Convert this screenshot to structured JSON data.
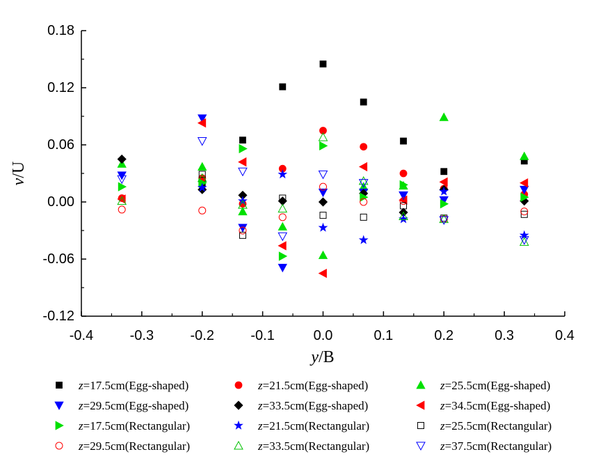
{
  "chart_data": {
    "type": "scatter",
    "xlabel": {
      "italic": "y",
      "rest": "/B"
    },
    "ylabel": {
      "italic": "v",
      "rest": "/U"
    },
    "xlim": [
      -0.4,
      0.4
    ],
    "ylim": [
      -0.12,
      0.18
    ],
    "xticks": [
      "-0.4",
      "-0.3",
      "-0.2",
      "-0.1",
      "0.0",
      "0.1",
      "0.2",
      "0.3",
      "0.4"
    ],
    "yticks": [
      "-0.12",
      "-0.06",
      "0.00",
      "0.06",
      "0.12",
      "0.18"
    ],
    "grid": false,
    "legend_placement": "bottom",
    "x": [
      -0.333,
      -0.2,
      -0.133,
      -0.067,
      0.0,
      0.067,
      0.133,
      0.2,
      0.333
    ],
    "series": [
      {
        "name": "z=17.5cm(Egg-shaped)",
        "marker": "square",
        "filled": true,
        "color": "#000000",
        "values": [
          null,
          0.02,
          0.065,
          0.121,
          0.145,
          0.105,
          0.064,
          0.032,
          0.043
        ]
      },
      {
        "name": "z=21.5cm(Egg-shaped)",
        "marker": "circle",
        "filled": true,
        "color": "#ff0000",
        "values": [
          0.004,
          0.025,
          -0.002,
          0.035,
          0.075,
          0.058,
          0.03,
          0.014,
          0.008
        ]
      },
      {
        "name": "z=25.5cm(Egg-shaped)",
        "marker": "triangle-up",
        "filled": true,
        "color": "#00e000",
        "values": [
          0.04,
          0.037,
          -0.01,
          -0.026,
          -0.056,
          0.016,
          0.017,
          0.089,
          0.048
        ]
      },
      {
        "name": "z=29.5cm(Egg-shaped)",
        "marker": "triangle-down",
        "filled": true,
        "color": "#0000ff",
        "values": [
          0.028,
          0.088,
          -0.027,
          -0.069,
          0.01,
          0.01,
          0.007,
          0.002,
          0.013
        ]
      },
      {
        "name": "z=33.5cm(Egg-shaped)",
        "marker": "diamond",
        "filled": true,
        "color": "#000000",
        "values": [
          0.045,
          0.013,
          0.007,
          0.001,
          0.0,
          0.009,
          -0.011,
          0.013,
          0.001
        ]
      },
      {
        "name": "z=34.5cm(Egg-shaped)",
        "marker": "triangle-left",
        "filled": true,
        "color": "#ff0000",
        "values": [
          0.003,
          0.083,
          0.042,
          -0.046,
          -0.075,
          0.037,
          0.002,
          0.021,
          0.02
        ]
      },
      {
        "name": "z=17.5cm(Rectangular)",
        "marker": "triangle-right",
        "filled": true,
        "color": "#00e000",
        "values": [
          0.016,
          0.02,
          0.056,
          -0.057,
          0.059,
          0.005,
          0.018,
          -0.002,
          0.005
        ]
      },
      {
        "name": "z=21.5cm(Rectangular)",
        "marker": "star",
        "filled": true,
        "color": "#0000ff",
        "values": [
          null,
          0.015,
          0.001,
          0.029,
          -0.027,
          -0.04,
          -0.018,
          0.011,
          -0.035
        ]
      },
      {
        "name": "z=25.5cm(Rectangular)",
        "marker": "square",
        "filled": false,
        "color": "#000000",
        "values": [
          null,
          0.029,
          -0.035,
          0.004,
          -0.014,
          -0.016,
          -0.004,
          -0.017,
          -0.013
        ]
      },
      {
        "name": "z=29.5cm(Rectangular)",
        "marker": "circle",
        "filled": false,
        "color": "#ff0000",
        "values": [
          -0.008,
          -0.009,
          -0.03,
          -0.016,
          0.016,
          0.0,
          0.001,
          -0.018,
          -0.01
        ]
      },
      {
        "name": "z=33.5cm(Rectangular)",
        "marker": "triangle-up",
        "filled": false,
        "color": "#00c000",
        "values": [
          0.001,
          0.025,
          -0.003,
          -0.007,
          0.068,
          0.022,
          -0.015,
          -0.018,
          -0.042
        ]
      },
      {
        "name": "z=37.5cm(Rectangular)",
        "marker": "triangle-down",
        "filled": false,
        "color": "#0000ff",
        "values": [
          0.024,
          0.064,
          0.032,
          -0.036,
          0.029,
          0.02,
          0.007,
          -0.019,
          -0.04
        ]
      }
    ]
  }
}
